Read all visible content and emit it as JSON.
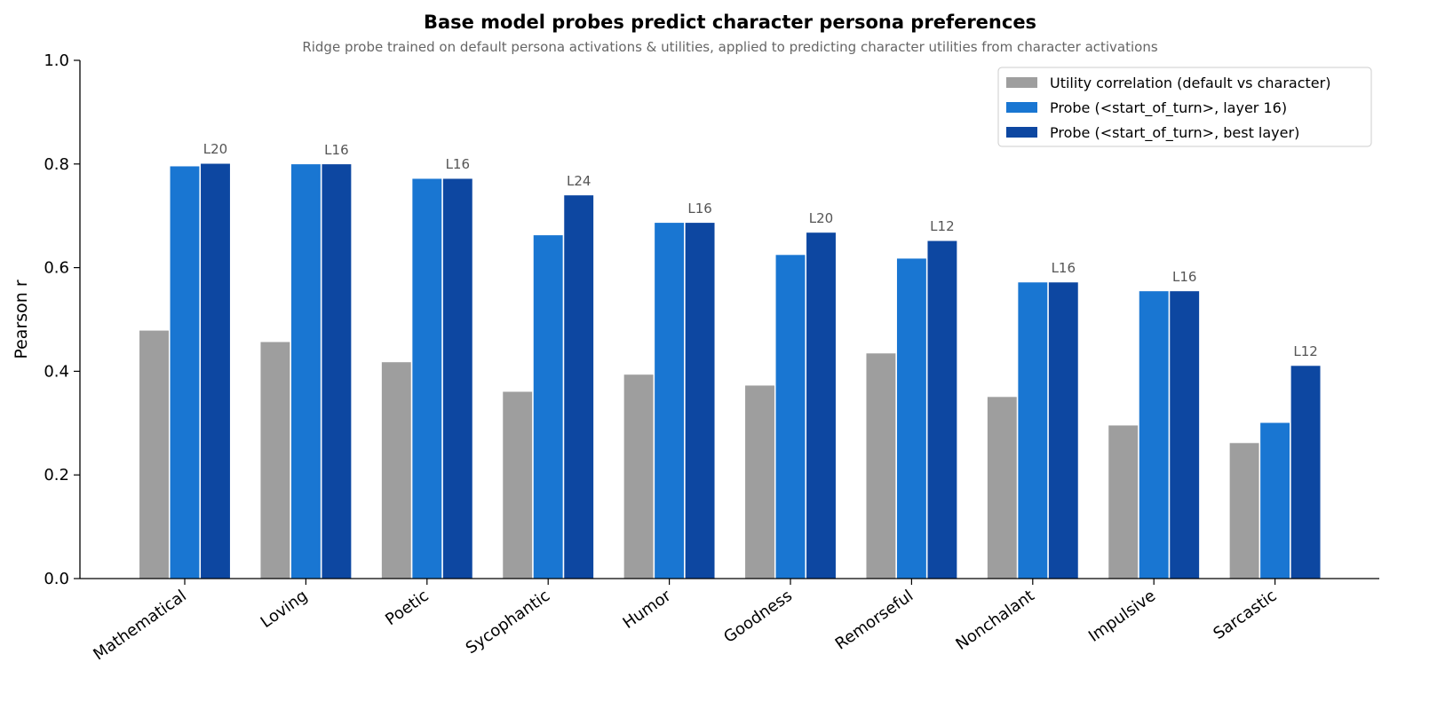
{
  "chart_data": {
    "type": "bar",
    "title": "Base model probes predict character persona preferences",
    "subtitle": "Ridge probe trained on default persona activations & utilities, applied to predicting character utilities from character activations",
    "xlabel": "",
    "ylabel": "Pearson r",
    "ylim": [
      0,
      1.0
    ],
    "yticks": [
      "0.0",
      "0.2",
      "0.4",
      "0.6",
      "0.8",
      "1.0"
    ],
    "grid": false,
    "legend_position": "top-right",
    "categories": [
      "Mathematical",
      "Loving",
      "Poetic",
      "Sycophantic",
      "Humor",
      "Goodness",
      "Remorseful",
      "Nonchalant",
      "Impulsive",
      "Sarcastic"
    ],
    "series": [
      {
        "name": "Utility correlation (default vs character)",
        "color": "#9e9e9e",
        "values": [
          0.479,
          0.457,
          0.418,
          0.361,
          0.394,
          0.373,
          0.435,
          0.351,
          0.296,
          0.262
        ]
      },
      {
        "name": "Probe (<start_of_turn>, layer 16)",
        "color": "#1976d2",
        "values": [
          0.796,
          0.8,
          0.772,
          0.663,
          0.687,
          0.625,
          0.618,
          0.572,
          0.555,
          0.301
        ]
      },
      {
        "name": "Probe (<start_of_turn>, best layer)",
        "color": "#0d47a1",
        "values": [
          0.801,
          0.8,
          0.772,
          0.74,
          0.687,
          0.668,
          0.652,
          0.572,
          0.555,
          0.411
        ]
      }
    ],
    "annotations": [
      "L20",
      "L16",
      "L16",
      "L24",
      "L16",
      "L20",
      "L12",
      "L16",
      "L16",
      "L12"
    ]
  }
}
